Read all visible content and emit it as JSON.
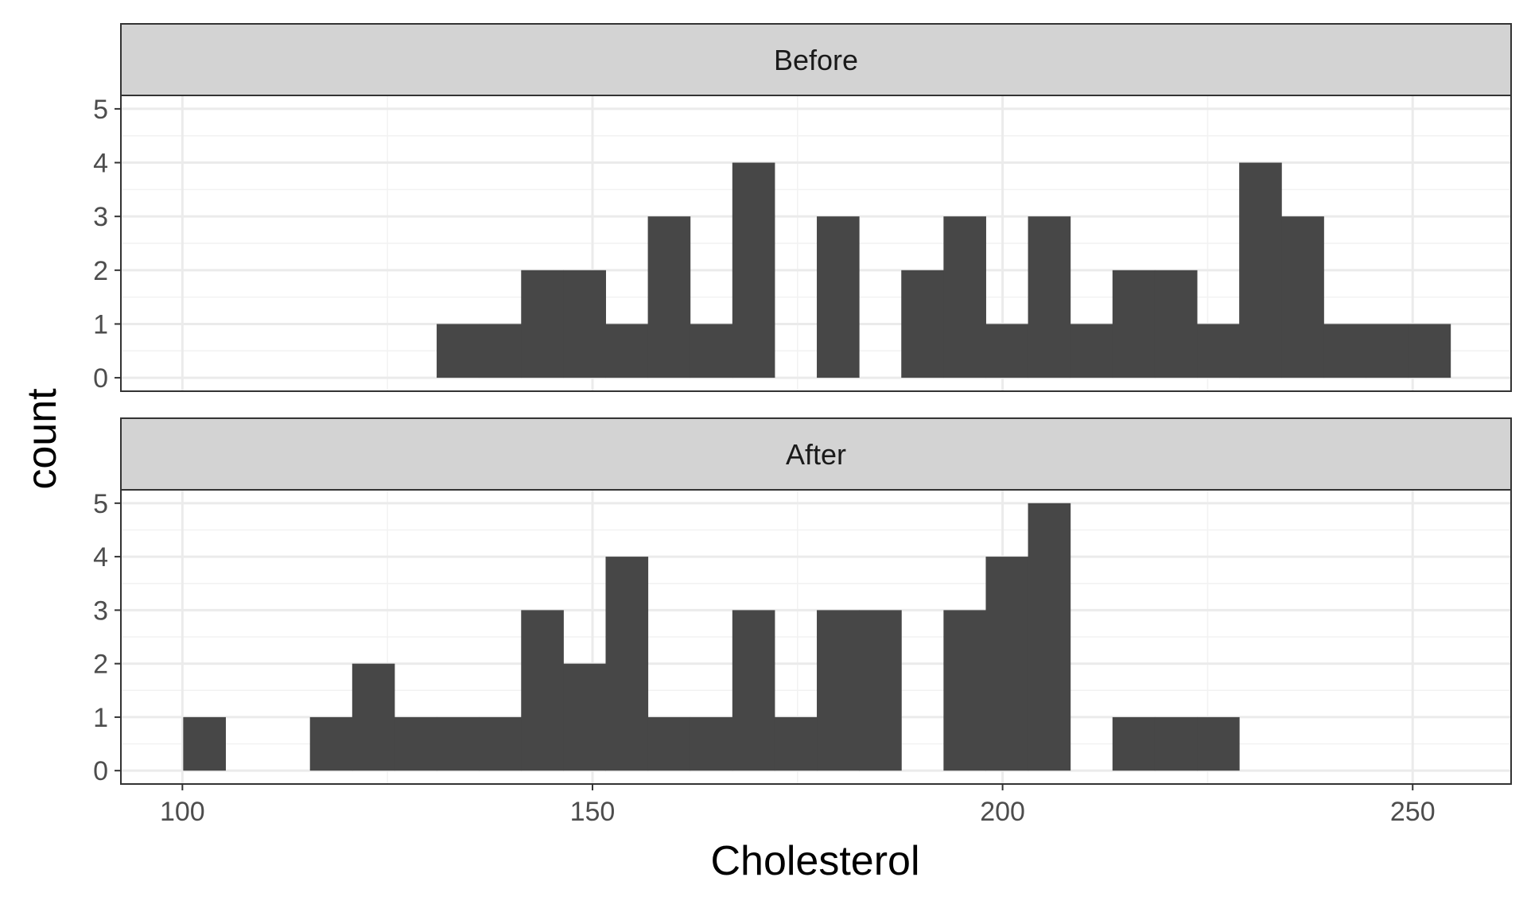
{
  "chart_data": {
    "type": "bar",
    "chart_subtype": "faceted-histogram",
    "xlabel": "Cholesterol",
    "ylabel": "count",
    "xlim": [
      92.5,
      262
    ],
    "ylim": [
      -0.25,
      5.25
    ],
    "x_ticks": [
      100,
      150,
      200,
      250
    ],
    "y_ticks": [
      0,
      1,
      2,
      3,
      4,
      5
    ],
    "grid": true,
    "legend": "none",
    "bin_width": 5.15,
    "colors": {
      "bar": "#474747",
      "strip": "#d3d3d3",
      "grid_major": "#ebebeb",
      "grid_minor": "#f2f2f2",
      "border": "#333333"
    },
    "facets": [
      {
        "label": "Before",
        "bins": [
          {
            "x0": 131,
            "count": 1
          },
          {
            "x0": 136.15,
            "count": 1
          },
          {
            "x0": 141.3,
            "count": 2
          },
          {
            "x0": 146.45,
            "count": 2
          },
          {
            "x0": 151.6,
            "count": 1
          },
          {
            "x0": 156.75,
            "count": 3
          },
          {
            "x0": 161.9,
            "count": 1
          },
          {
            "x0": 167.05,
            "count": 4
          },
          {
            "x0": 177.35,
            "count": 3
          },
          {
            "x0": 187.65,
            "count": 2
          },
          {
            "x0": 192.8,
            "count": 3
          },
          {
            "x0": 197.95,
            "count": 1
          },
          {
            "x0": 203.1,
            "count": 3
          },
          {
            "x0": 208.25,
            "count": 1
          },
          {
            "x0": 213.4,
            "count": 2
          },
          {
            "x0": 218.55,
            "count": 2
          },
          {
            "x0": 223.7,
            "count": 1
          },
          {
            "x0": 228.85,
            "count": 4
          },
          {
            "x0": 234.0,
            "count": 3
          },
          {
            "x0": 239.15,
            "count": 1
          },
          {
            "x0": 244.3,
            "count": 1
          },
          {
            "x0": 249.45,
            "count": 1
          }
        ]
      },
      {
        "label": "After",
        "bins": [
          {
            "x0": 100.1,
            "count": 1
          },
          {
            "x0": 115.55,
            "count": 1
          },
          {
            "x0": 120.7,
            "count": 2
          },
          {
            "x0": 125.85,
            "count": 1
          },
          {
            "x0": 131.0,
            "count": 1
          },
          {
            "x0": 136.15,
            "count": 1
          },
          {
            "x0": 141.3,
            "count": 3
          },
          {
            "x0": 146.45,
            "count": 2
          },
          {
            "x0": 151.6,
            "count": 4
          },
          {
            "x0": 156.75,
            "count": 1
          },
          {
            "x0": 161.9,
            "count": 1
          },
          {
            "x0": 167.05,
            "count": 3
          },
          {
            "x0": 172.2,
            "count": 1
          },
          {
            "x0": 177.35,
            "count": 3
          },
          {
            "x0": 182.5,
            "count": 3
          },
          {
            "x0": 192.8,
            "count": 3
          },
          {
            "x0": 197.95,
            "count": 4
          },
          {
            "x0": 203.1,
            "count": 5
          },
          {
            "x0": 213.4,
            "count": 1
          },
          {
            "x0": 218.55,
            "count": 1
          },
          {
            "x0": 223.7,
            "count": 1
          }
        ]
      }
    ]
  }
}
